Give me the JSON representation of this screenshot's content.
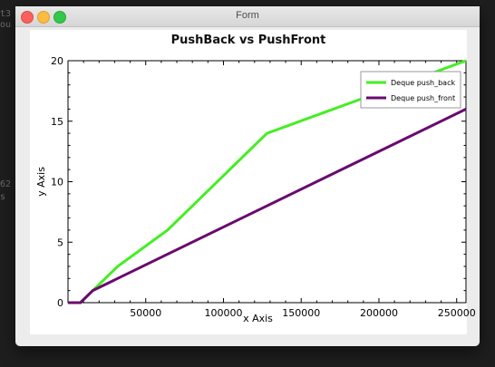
{
  "window": {
    "title": "Form"
  },
  "background_fragments": [
    "t3",
    "ou",
    "62",
    "s  ."
  ],
  "chart_data": {
    "type": "line",
    "title": "PushBack vs PushFront",
    "xlabel": "x Axis",
    "ylabel": "y Axis",
    "xlim": [
      0,
      256000
    ],
    "ylim": [
      0,
      20
    ],
    "x_ticks": [
      50000,
      100000,
      150000,
      200000,
      250000
    ],
    "y_ticks": [
      0,
      5,
      10,
      15,
      20
    ],
    "grid": false,
    "legend_position": "top-right",
    "series": [
      {
        "name": "Deque push_back",
        "color": "#44ee22",
        "points": [
          [
            0,
            0
          ],
          [
            8000,
            0
          ],
          [
            16000,
            1
          ],
          [
            32000,
            3
          ],
          [
            64000,
            6
          ],
          [
            128000,
            14
          ],
          [
            256000,
            20
          ]
        ]
      },
      {
        "name": "Deque push_front",
        "color": "#6a0a6e",
        "points": [
          [
            0,
            0
          ],
          [
            8000,
            0
          ],
          [
            16000,
            1
          ],
          [
            256000,
            16
          ]
        ]
      }
    ]
  }
}
